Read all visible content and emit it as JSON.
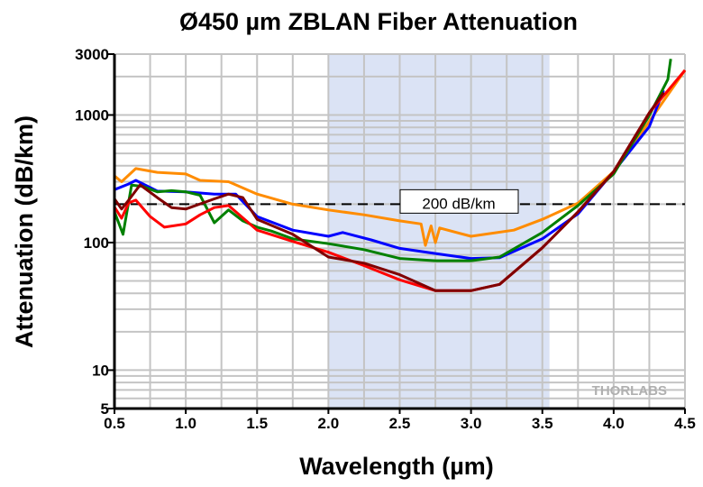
{
  "chart_data": {
    "type": "line",
    "title": "Ø450 µm ZBLAN Fiber Attenuation",
    "xlabel": "Wavelength (µm)",
    "ylabel": "Attenuation (dB/km)",
    "xlim": [
      0.5,
      4.5
    ],
    "ylim": [
      5,
      3000
    ],
    "yscale": "log",
    "xticks": [
      "0.5",
      "1.0",
      "1.5",
      "2.0",
      "2.5",
      "3.0",
      "3.5",
      "4.0",
      "4.5"
    ],
    "xtick_values": [
      0.5,
      1.0,
      1.5,
      2.0,
      2.5,
      3.0,
      3.5,
      4.0,
      4.5
    ],
    "yticks": [
      "5",
      "10",
      "100",
      "1000",
      "3000"
    ],
    "ytick_values": [
      5,
      10,
      100,
      1000,
      3000
    ],
    "grid": true,
    "shaded_region": {
      "x": [
        2.0,
        3.55
      ],
      "color": "#dbe3f5"
    },
    "reference_line": {
      "value": 200,
      "label": "200 dB/km"
    },
    "watermark": "THORLABS",
    "series": [
      {
        "name": "orange",
        "color": "#ff8c00",
        "x": [
          0.5,
          0.55,
          0.65,
          0.8,
          1.0,
          1.1,
          1.3,
          1.5,
          1.75,
          2.0,
          2.25,
          2.5,
          2.65,
          2.68,
          2.72,
          2.75,
          2.78,
          3.0,
          3.3,
          3.5,
          3.75,
          4.0,
          4.25,
          4.5
        ],
        "y": [
          333,
          300,
          380,
          355,
          345,
          307,
          300,
          240,
          200,
          180,
          165,
          148,
          140,
          95,
          135,
          100,
          130,
          112,
          125,
          152,
          204,
          360,
          890,
          2240
        ]
      },
      {
        "name": "blue",
        "color": "#0000ff",
        "x": [
          0.5,
          0.6,
          0.65,
          0.8,
          1.0,
          1.2,
          1.35,
          1.5,
          1.75,
          2.0,
          2.1,
          2.3,
          2.5,
          2.75,
          3.0,
          3.2,
          3.5,
          3.75,
          4.0,
          4.25,
          4.35
        ],
        "y": [
          260,
          288,
          307,
          253,
          250,
          240,
          240,
          160,
          125,
          112,
          120,
          105,
          90,
          82,
          75,
          76,
          107,
          168,
          360,
          810,
          1560
        ]
      },
      {
        "name": "green",
        "color": "#008000",
        "x": [
          0.5,
          0.56,
          0.62,
          0.7,
          0.8,
          0.9,
          1.0,
          1.1,
          1.2,
          1.3,
          1.4,
          1.5,
          1.6,
          1.75,
          2.0,
          2.25,
          2.5,
          2.75,
          3.0,
          3.2,
          3.5,
          3.75,
          4.0,
          4.25,
          4.38,
          4.4
        ],
        "y": [
          174,
          116,
          282,
          275,
          250,
          255,
          250,
          235,
          143,
          180,
          148,
          132,
          123,
          107,
          98,
          88,
          75,
          72,
          72,
          77,
          120,
          195,
          345,
          990,
          1900,
          2750
        ]
      },
      {
        "name": "red",
        "color": "#ff0000",
        "x": [
          0.5,
          0.55,
          0.6,
          0.65,
          0.75,
          0.85,
          1.0,
          1.1,
          1.2,
          1.3,
          1.5,
          1.75,
          2.0,
          2.25,
          2.5,
          2.75,
          3.0,
          3.2,
          3.5,
          3.75,
          4.0,
          4.25,
          4.5
        ],
        "y": [
          190,
          155,
          205,
          215,
          160,
          132,
          140,
          165,
          188,
          195,
          125,
          102,
          84,
          66,
          51,
          42,
          42,
          47,
          91,
          174,
          360,
          1040,
          2240
        ]
      },
      {
        "name": "dark-red",
        "color": "#800000",
        "x": [
          0.5,
          0.55,
          0.6,
          0.68,
          0.8,
          0.9,
          1.0,
          1.2,
          1.3,
          1.4,
          1.5,
          1.75,
          2.0,
          2.25,
          2.5,
          2.75,
          3.0,
          3.2,
          3.5,
          3.75,
          4.0,
          4.25,
          4.35
        ],
        "y": [
          220,
          183,
          215,
          283,
          225,
          188,
          183,
          220,
          240,
          225,
          152,
          116,
          77,
          69,
          56,
          42,
          42,
          47,
          91,
          174,
          360,
          1040,
          1500
        ]
      }
    ]
  }
}
